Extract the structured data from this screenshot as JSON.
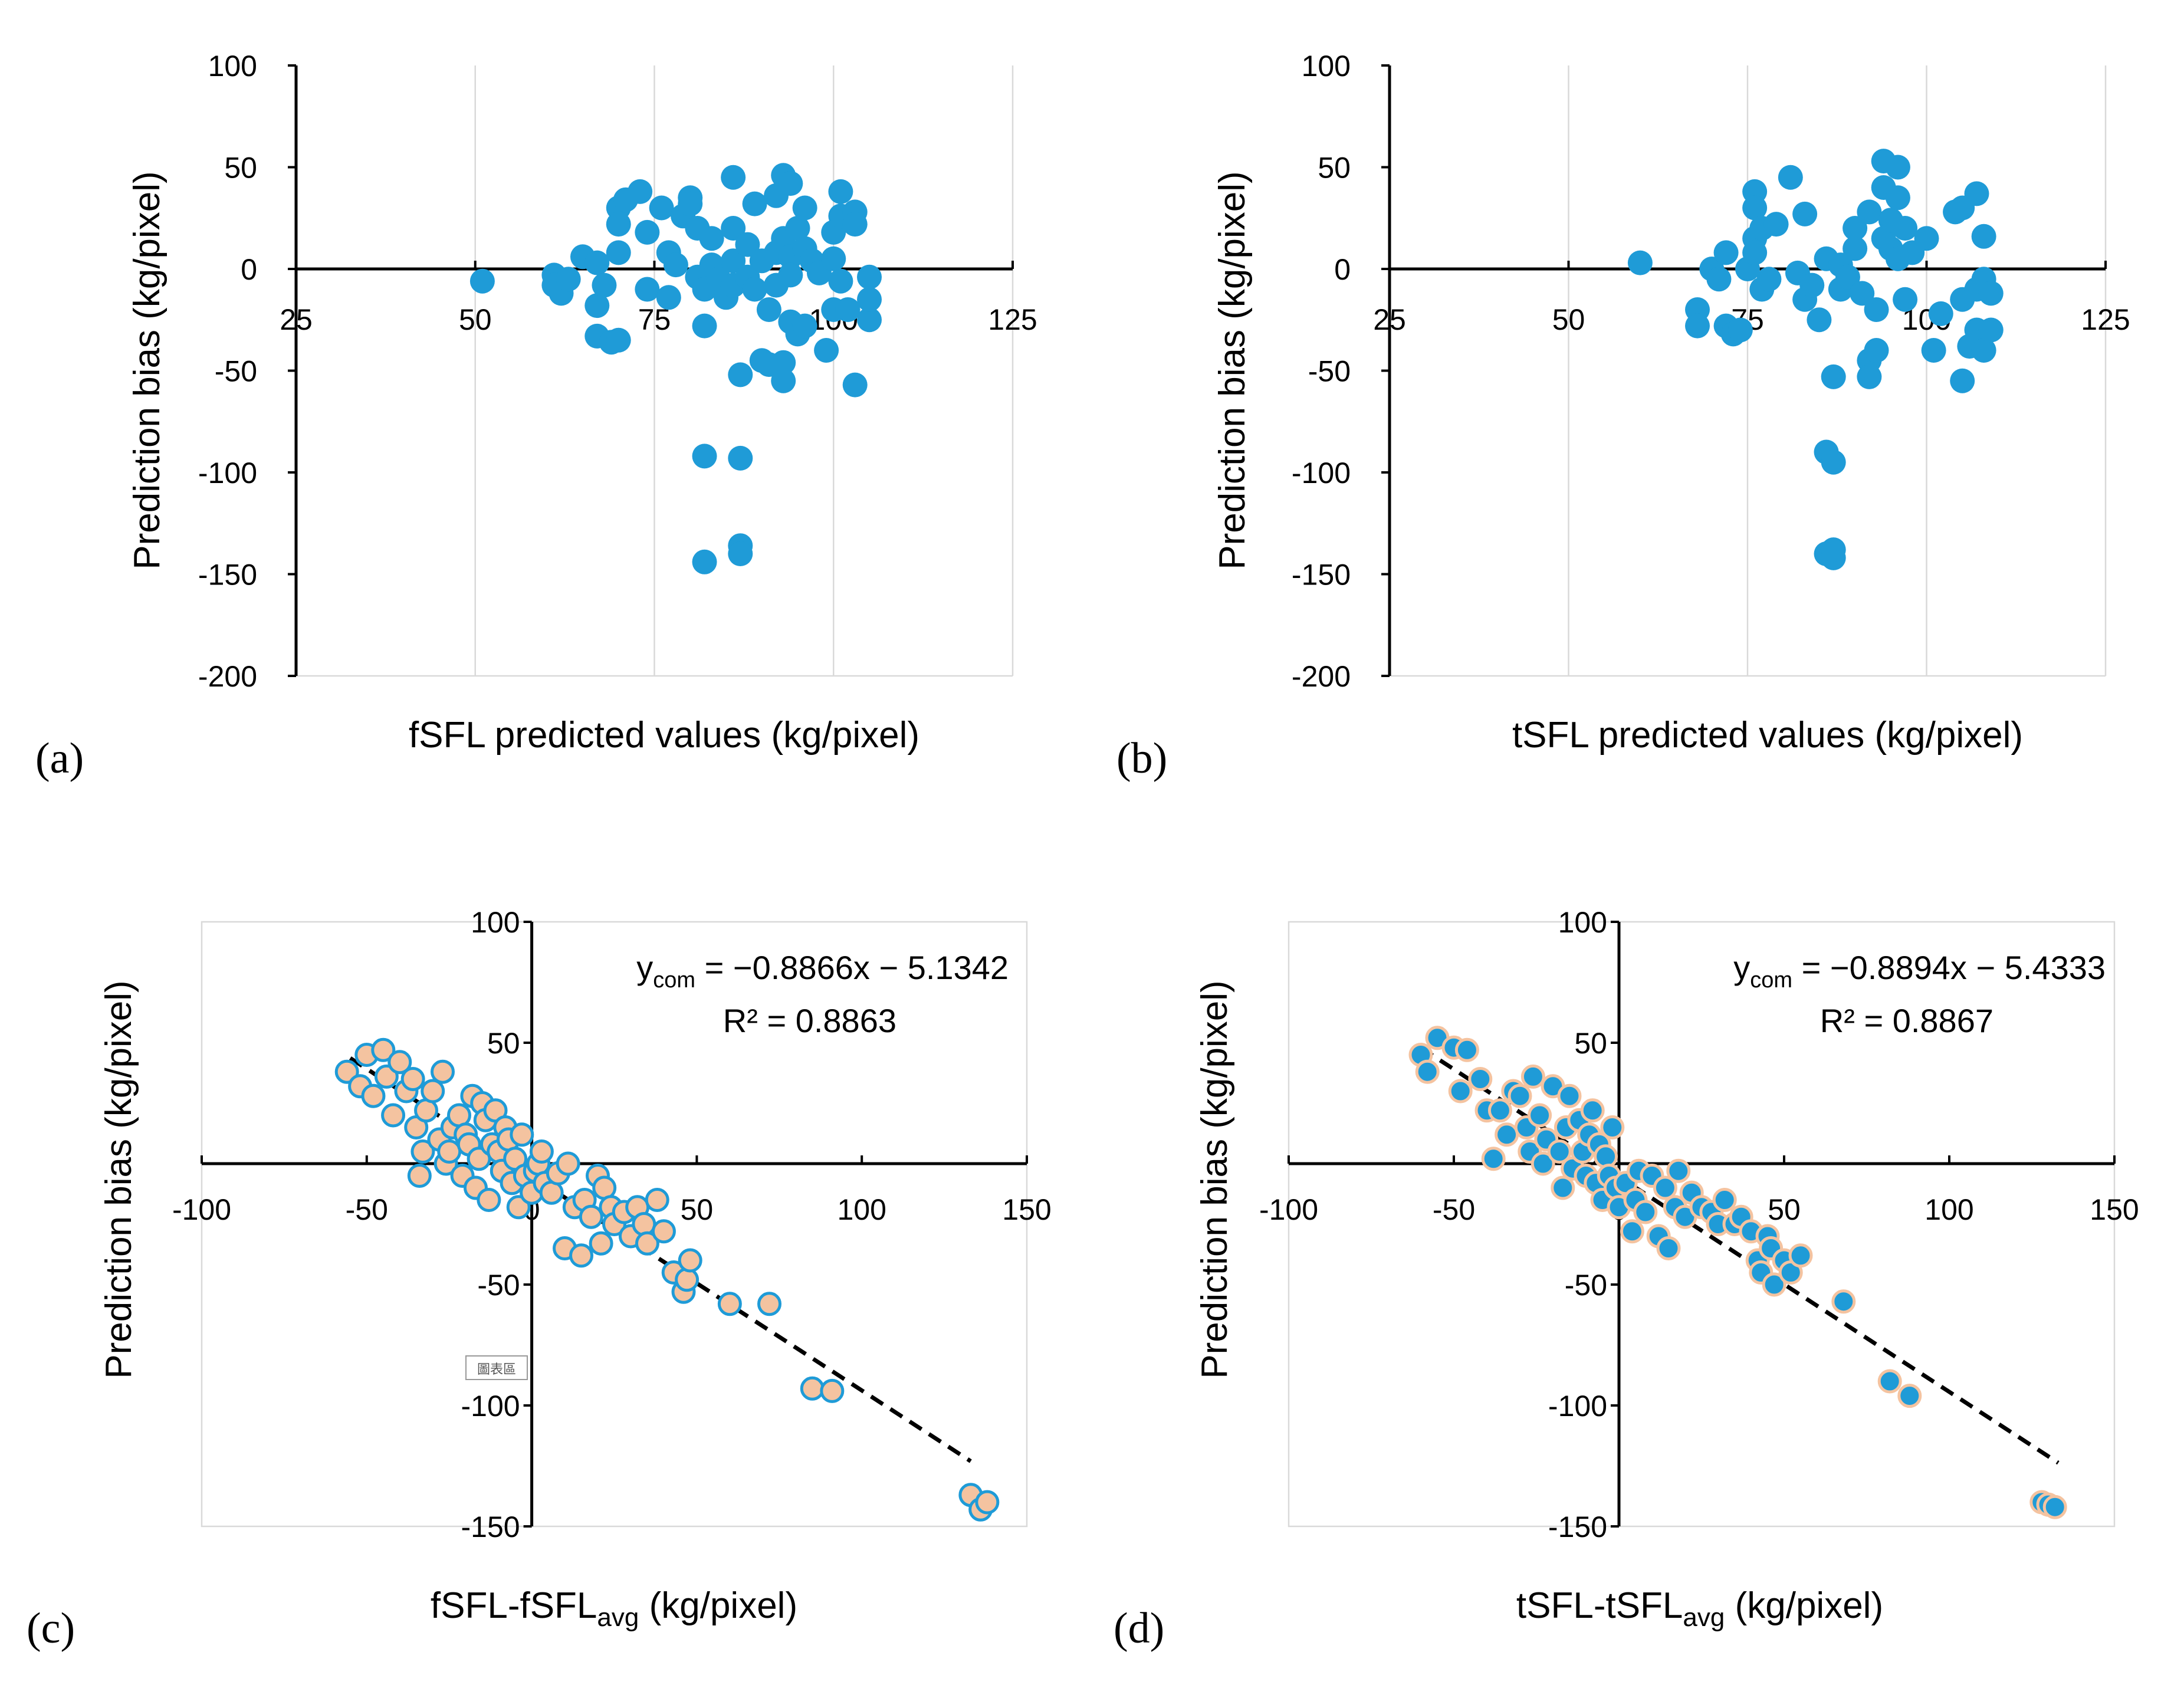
{
  "chart_data": [
    {
      "panel_label": "(a)",
      "type": "scatter",
      "xlabel": "fSFL predicted values (kg/pixel)",
      "ylabel": "Prediction bias (kg/pixel)",
      "xlim": [
        25,
        125
      ],
      "ylim": [
        -200,
        100
      ],
      "xticks": [
        25,
        50,
        75,
        100,
        125
      ],
      "yticks": [
        -200,
        -150,
        -100,
        -50,
        0,
        50,
        100
      ],
      "x_axis_crosses_y_at": 0,
      "grid": "vertical",
      "marker": {
        "fill": "#1f9bd7",
        "stroke": "#1f9bd7"
      },
      "points": [
        [
          51,
          -6
        ],
        [
          61,
          -3
        ],
        [
          61,
          -8
        ],
        [
          62,
          -12
        ],
        [
          63,
          -5
        ],
        [
          65,
          6
        ],
        [
          67,
          3
        ],
        [
          67,
          -18
        ],
        [
          67,
          -33
        ],
        [
          68,
          -8
        ],
        [
          69,
          -36
        ],
        [
          70,
          -35
        ],
        [
          70,
          30
        ],
        [
          70,
          22
        ],
        [
          70,
          8
        ],
        [
          71,
          34
        ],
        [
          73,
          38
        ],
        [
          74,
          18
        ],
        [
          74,
          -10
        ],
        [
          76,
          30
        ],
        [
          77,
          -14
        ],
        [
          77,
          8
        ],
        [
          78,
          2
        ],
        [
          79,
          26
        ],
        [
          80,
          35
        ],
        [
          80,
          32
        ],
        [
          81,
          -4
        ],
        [
          81,
          20
        ],
        [
          82,
          -10
        ],
        [
          82,
          -28
        ],
        [
          82,
          -92
        ],
        [
          82,
          -144
        ],
        [
          83,
          15
        ],
        [
          83,
          2
        ],
        [
          84,
          -5
        ],
        [
          85,
          -14
        ],
        [
          86,
          4
        ],
        [
          86,
          -8
        ],
        [
          86,
          45
        ],
        [
          86,
          20
        ],
        [
          87,
          -52
        ],
        [
          87,
          -136
        ],
        [
          87,
          -140
        ],
        [
          87,
          -93
        ],
        [
          88,
          12
        ],
        [
          88,
          -4
        ],
        [
          89,
          32
        ],
        [
          89,
          -10
        ],
        [
          90,
          4
        ],
        [
          90,
          -45
        ],
        [
          91,
          -47
        ],
        [
          91,
          -20
        ],
        [
          92,
          8
        ],
        [
          92,
          -8
        ],
        [
          92,
          36
        ],
        [
          93,
          -55
        ],
        [
          93,
          -46
        ],
        [
          93,
          46
        ],
        [
          93,
          15
        ],
        [
          94,
          6
        ],
        [
          94,
          -26
        ],
        [
          94,
          42
        ],
        [
          94,
          -3
        ],
        [
          95,
          -32
        ],
        [
          95,
          20
        ],
        [
          96,
          30
        ],
        [
          96,
          -28
        ],
        [
          96,
          10
        ],
        [
          97,
          4
        ],
        [
          98,
          -2
        ],
        [
          99,
          -40
        ],
        [
          100,
          5
        ],
        [
          100,
          -20
        ],
        [
          100,
          18
        ],
        [
          101,
          26
        ],
        [
          101,
          38
        ],
        [
          101,
          -6
        ],
        [
          102,
          -20
        ],
        [
          103,
          -57
        ],
        [
          103,
          28
        ],
        [
          103,
          22
        ],
        [
          105,
          -25
        ],
        [
          105,
          -15
        ],
        [
          105,
          -4
        ]
      ]
    },
    {
      "panel_label": "(b)",
      "type": "scatter",
      "xlabel": "tSFL predicted values (kg/pixel)",
      "ylabel": "Prediction bias (kg/pixel)",
      "xlim": [
        25,
        125
      ],
      "ylim": [
        -200,
        100
      ],
      "xticks": [
        25,
        50,
        75,
        100,
        125
      ],
      "yticks": [
        -200,
        -150,
        -100,
        -50,
        0,
        50,
        100
      ],
      "x_axis_crosses_y_at": 0,
      "grid": "vertical",
      "marker": {
        "fill": "#1f9bd7",
        "stroke": "#1f9bd7"
      },
      "points": [
        [
          60,
          3
        ],
        [
          68,
          -20
        ],
        [
          68,
          -28
        ],
        [
          70,
          0
        ],
        [
          71,
          -5
        ],
        [
          72,
          8
        ],
        [
          72,
          -28
        ],
        [
          73,
          -32
        ],
        [
          74,
          -30
        ],
        [
          75,
          0
        ],
        [
          76,
          38
        ],
        [
          76,
          30
        ],
        [
          76,
          15
        ],
        [
          76,
          8
        ],
        [
          77,
          -10
        ],
        [
          77,
          20
        ],
        [
          78,
          -5
        ],
        [
          79,
          22
        ],
        [
          81,
          45
        ],
        [
          82,
          -2
        ],
        [
          83,
          27
        ],
        [
          83,
          -15
        ],
        [
          84,
          -8
        ],
        [
          85,
          -25
        ],
        [
          86,
          5
        ],
        [
          86,
          -90
        ],
        [
          86,
          -140
        ],
        [
          87,
          -142
        ],
        [
          87,
          -138
        ],
        [
          87,
          -95
        ],
        [
          87,
          -53
        ],
        [
          88,
          2
        ],
        [
          88,
          -10
        ],
        [
          89,
          -4
        ],
        [
          90,
          20
        ],
        [
          90,
          10
        ],
        [
          91,
          -12
        ],
        [
          92,
          -45
        ],
        [
          92,
          -53
        ],
        [
          92,
          28
        ],
        [
          93,
          -40
        ],
        [
          93,
          -20
        ],
        [
          94,
          53
        ],
        [
          94,
          40
        ],
        [
          94,
          15
        ],
        [
          95,
          24
        ],
        [
          95,
          10
        ],
        [
          96,
          50
        ],
        [
          96,
          35
        ],
        [
          96,
          5
        ],
        [
          97,
          20
        ],
        [
          97,
          -15
        ],
        [
          98,
          8
        ],
        [
          100,
          15
        ],
        [
          101,
          -40
        ],
        [
          102,
          -22
        ],
        [
          104,
          28
        ],
        [
          105,
          -55
        ],
        [
          105,
          30
        ],
        [
          105,
          -15
        ],
        [
          106,
          -38
        ],
        [
          107,
          -10
        ],
        [
          107,
          -30
        ],
        [
          107,
          37
        ],
        [
          108,
          16
        ],
        [
          108,
          -5
        ],
        [
          108,
          -40
        ],
        [
          109,
          -30
        ],
        [
          109,
          -12
        ]
      ]
    },
    {
      "panel_label": "(c)",
      "type": "scatter",
      "xlabel": "fSFL-fSFL",
      "xlabel_sub": "avg",
      "xlabel_suffix": " (kg/pixel)",
      "ylabel": "Prediction bias (kg/pixel)",
      "xlim": [
        -100,
        150
      ],
      "ylim": [
        -150,
        100
      ],
      "xticks": [
        -100,
        -50,
        0,
        50,
        100,
        150
      ],
      "yticks": [
        -150,
        -100,
        -50,
        50,
        100
      ],
      "axes_cross_at_origin": true,
      "grid": "none",
      "marker": {
        "fill": "#f4c3a0",
        "stroke": "#1f9bd7"
      },
      "trendline": {
        "slope": -0.8866,
        "intercept": -5.1342,
        "x_range": [
          -55,
          133
        ],
        "color": "#000000",
        "style": "dashed"
      },
      "equation": {
        "y": "y",
        "y_sub": "com",
        "rhs": " = −0.8866x − 5.1342",
        "r2": "R² = 0.8863"
      },
      "stamp": "圖表區",
      "points": [
        [
          -56,
          38
        ],
        [
          -52,
          32
        ],
        [
          -50,
          45
        ],
        [
          -48,
          28
        ],
        [
          -45,
          47
        ],
        [
          -44,
          36
        ],
        [
          -42,
          20
        ],
        [
          -40,
          42
        ],
        [
          -38,
          30
        ],
        [
          -36,
          35
        ],
        [
          -35,
          15
        ],
        [
          -34,
          -5
        ],
        [
          -33,
          5
        ],
        [
          -32,
          22
        ],
        [
          -30,
          30
        ],
        [
          -28,
          10
        ],
        [
          -27,
          38
        ],
        [
          -26,
          0
        ],
        [
          -25,
          5
        ],
        [
          -24,
          15
        ],
        [
          -22,
          20
        ],
        [
          -21,
          -5
        ],
        [
          -20,
          12
        ],
        [
          -19,
          8
        ],
        [
          -18,
          28
        ],
        [
          -17,
          -10
        ],
        [
          -16,
          2
        ],
        [
          -15,
          25
        ],
        [
          -14,
          18
        ],
        [
          -13,
          -15
        ],
        [
          -12,
          8
        ],
        [
          -11,
          22
        ],
        [
          -10,
          5
        ],
        [
          -9,
          -3
        ],
        [
          -8,
          15
        ],
        [
          -7,
          10
        ],
        [
          -6,
          -8
        ],
        [
          -5,
          2
        ],
        [
          -4,
          -18
        ],
        [
          -3,
          12
        ],
        [
          -2,
          -5
        ],
        [
          0,
          -12
        ],
        [
          1,
          -3
        ],
        [
          2,
          0
        ],
        [
          3,
          5
        ],
        [
          4,
          -8
        ],
        [
          6,
          -12
        ],
        [
          8,
          -4
        ],
        [
          10,
          -35
        ],
        [
          11,
          0
        ],
        [
          13,
          -18
        ],
        [
          15,
          -38
        ],
        [
          16,
          -15
        ],
        [
          18,
          -22
        ],
        [
          20,
          -5
        ],
        [
          21,
          -33
        ],
        [
          22,
          -10
        ],
        [
          24,
          -18
        ],
        [
          25,
          -25
        ],
        [
          28,
          -20
        ],
        [
          30,
          -30
        ],
        [
          32,
          -18
        ],
        [
          34,
          -25
        ],
        [
          35,
          -33
        ],
        [
          38,
          -15
        ],
        [
          40,
          -28
        ],
        [
          43,
          -45
        ],
        [
          46,
          -53
        ],
        [
          47,
          -48
        ],
        [
          48,
          -40
        ],
        [
          60,
          -58
        ],
        [
          72,
          -58
        ],
        [
          85,
          -93
        ],
        [
          91,
          -94
        ],
        [
          133,
          -137
        ],
        [
          136,
          -143
        ],
        [
          138,
          -140
        ]
      ]
    },
    {
      "panel_label": "(d)",
      "type": "scatter",
      "xlabel": "tSFL-tSFL",
      "xlabel_sub": "avg",
      "xlabel_suffix": " (kg/pixel)",
      "ylabel": "Prediction bias (kg/pixel)",
      "xlim": [
        -100,
        150
      ],
      "ylim": [
        -150,
        100
      ],
      "xticks": [
        -100,
        -50,
        0,
        50,
        100,
        150
      ],
      "yticks": [
        -150,
        -100,
        -50,
        50,
        100
      ],
      "axes_cross_at_origin": true,
      "grid": "none",
      "marker": {
        "fill": "#1f9bd7",
        "stroke": "#f4c3a0"
      },
      "trendline": {
        "slope": -0.8894,
        "intercept": -5.4333,
        "x_range": [
          -60,
          133
        ],
        "color": "#000000",
        "style": "dashed"
      },
      "equation": {
        "y": "y",
        "y_sub": "com",
        "rhs": " = −0.8894x − 5.4333",
        "r2": "R² = 0.8867"
      },
      "points": [
        [
          -60,
          45
        ],
        [
          -58,
          38
        ],
        [
          -55,
          52
        ],
        [
          -50,
          48
        ],
        [
          -48,
          30
        ],
        [
          -46,
          47
        ],
        [
          -42,
          35
        ],
        [
          -40,
          22
        ],
        [
          -38,
          2
        ],
        [
          -36,
          22
        ],
        [
          -34,
          12
        ],
        [
          -32,
          30
        ],
        [
          -30,
          28
        ],
        [
          -28,
          15
        ],
        [
          -27,
          5
        ],
        [
          -26,
          36
        ],
        [
          -24,
          20
        ],
        [
          -23,
          0
        ],
        [
          -22,
          10
        ],
        [
          -20,
          32
        ],
        [
          -18,
          5
        ],
        [
          -17,
          -10
        ],
        [
          -16,
          15
        ],
        [
          -15,
          28
        ],
        [
          -14,
          -2
        ],
        [
          -12,
          18
        ],
        [
          -11,
          5
        ],
        [
          -10,
          -5
        ],
        [
          -9,
          12
        ],
        [
          -8,
          22
        ],
        [
          -7,
          -8
        ],
        [
          -6,
          8
        ],
        [
          -5,
          -15
        ],
        [
          -4,
          3
        ],
        [
          -3,
          -5
        ],
        [
          -2,
          15
        ],
        [
          -1,
          -10
        ],
        [
          0,
          -18
        ],
        [
          2,
          -8
        ],
        [
          4,
          -28
        ],
        [
          5,
          -15
        ],
        [
          6,
          -3
        ],
        [
          8,
          -20
        ],
        [
          10,
          -5
        ],
        [
          12,
          -30
        ],
        [
          14,
          -10
        ],
        [
          15,
          -35
        ],
        [
          17,
          -18
        ],
        [
          18,
          -3
        ],
        [
          20,
          -22
        ],
        [
          22,
          -12
        ],
        [
          25,
          -18
        ],
        [
          28,
          -20
        ],
        [
          30,
          -25
        ],
        [
          32,
          -15
        ],
        [
          35,
          -25
        ],
        [
          37,
          -22
        ],
        [
          40,
          -28
        ],
        [
          42,
          -40
        ],
        [
          43,
          -45
        ],
        [
          45,
          -30
        ],
        [
          46,
          -35
        ],
        [
          47,
          -50
        ],
        [
          50,
          -40
        ],
        [
          52,
          -45
        ],
        [
          55,
          -38
        ],
        [
          68,
          -57
        ],
        [
          82,
          -90
        ],
        [
          88,
          -96
        ],
        [
          128,
          -140
        ],
        [
          130,
          -141
        ],
        [
          132,
          -142
        ]
      ]
    }
  ]
}
